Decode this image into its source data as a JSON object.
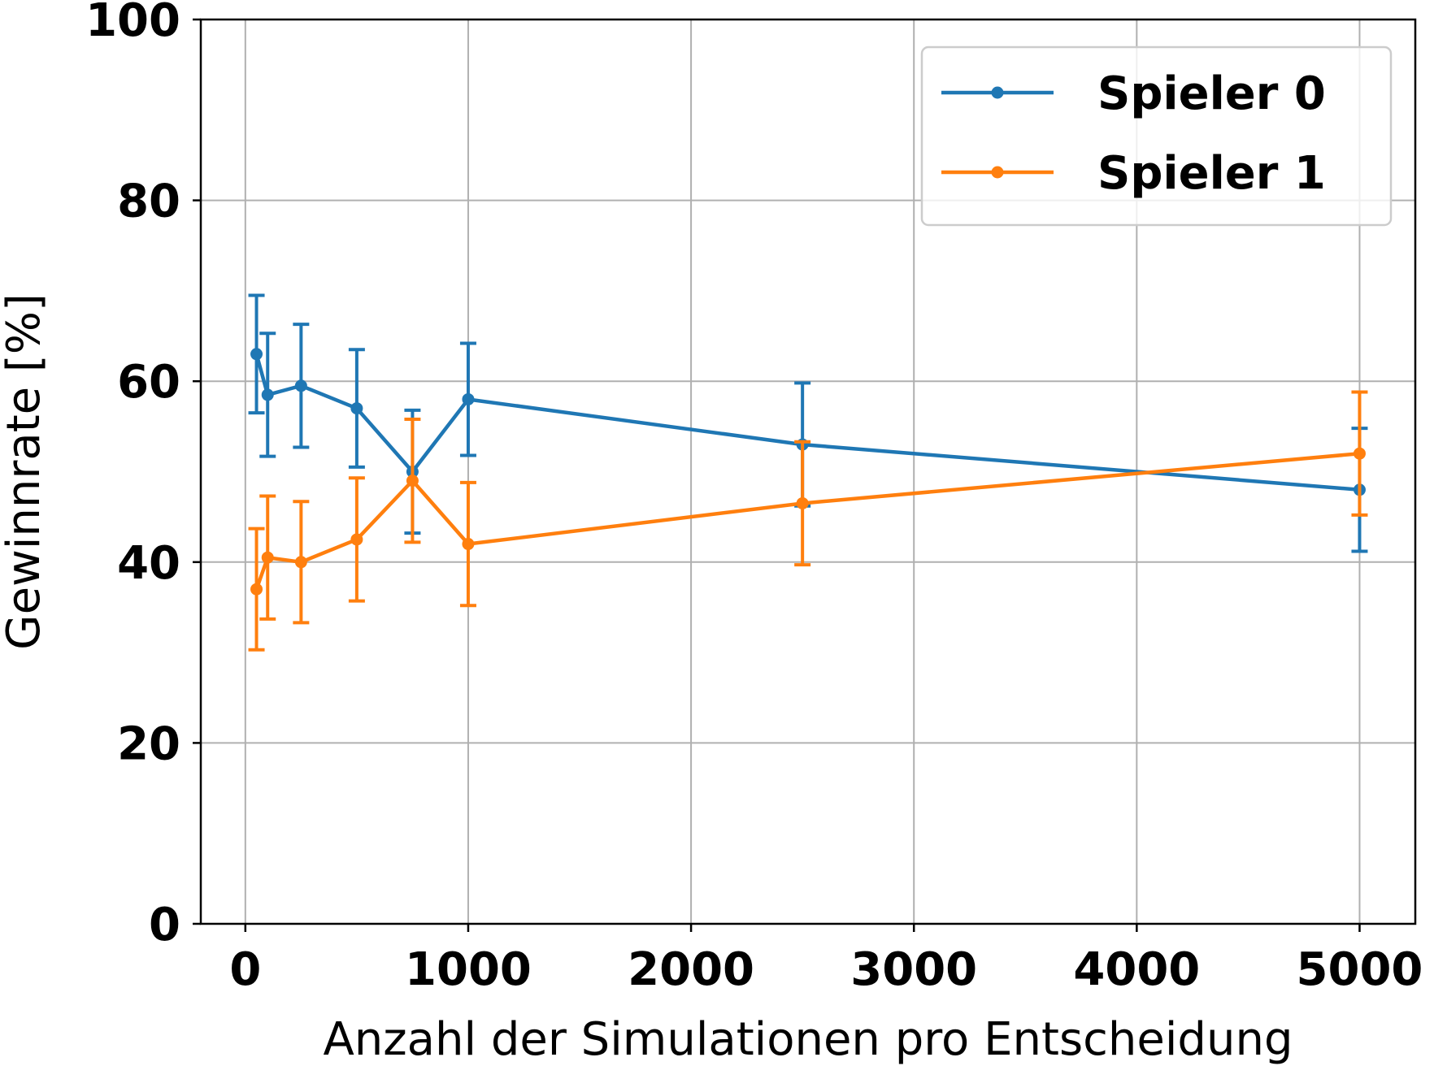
{
  "chart_data": {
    "type": "line",
    "xlabel": "Anzahl der Simulationen pro Entscheidung",
    "ylabel": "Gewinnrate [%]",
    "xlim": [
      -200,
      5250
    ],
    "ylim": [
      0,
      100
    ],
    "xticks": [
      0,
      1000,
      2000,
      3000,
      4000,
      5000
    ],
    "yticks": [
      0,
      20,
      40,
      60,
      80,
      100
    ],
    "grid": true,
    "legend_position": "top-right",
    "x": [
      50,
      100,
      250,
      500,
      750,
      1000,
      2500,
      5000
    ],
    "series": [
      {
        "name": "Spieler 0",
        "color": "#1f77b4",
        "values": [
          63.0,
          58.5,
          59.5,
          57.0,
          50.0,
          58.0,
          53.0,
          48.0
        ],
        "errors": [
          6.5,
          6.8,
          6.8,
          6.5,
          6.8,
          6.2,
          6.8,
          6.8
        ]
      },
      {
        "name": "Spieler 1",
        "color": "#ff7f0e",
        "values": [
          37.0,
          40.5,
          40.0,
          42.5,
          49.0,
          42.0,
          46.5,
          52.0
        ],
        "errors": [
          6.7,
          6.8,
          6.7,
          6.8,
          6.8,
          6.8,
          6.8,
          6.8
        ]
      }
    ]
  }
}
